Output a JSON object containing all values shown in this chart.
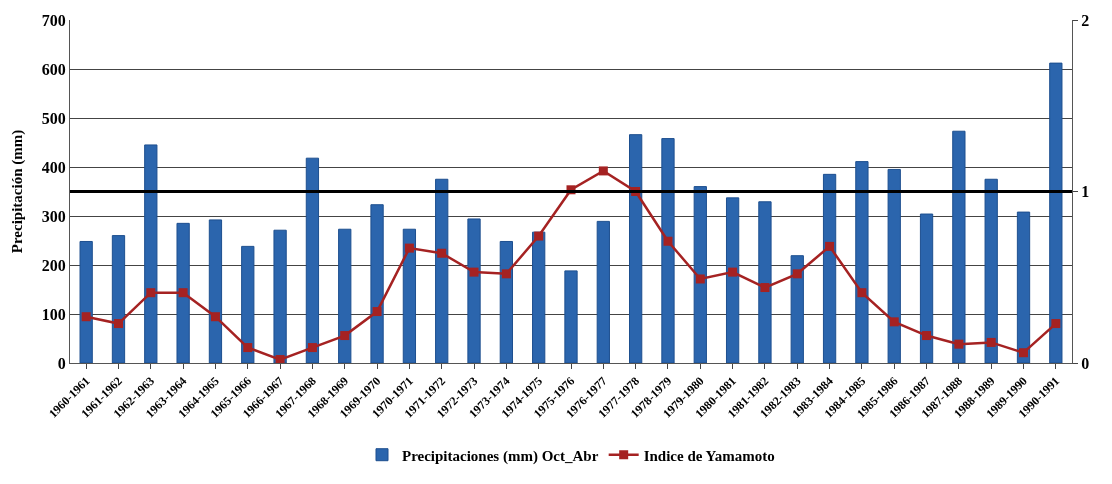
{
  "chart_data": {
    "type": "bar",
    "ylabel": "Precipitación (mm)",
    "categories": [
      "1960-1961",
      "1961-1962",
      "1962-1963",
      "1963-1964",
      "1964-1965",
      "1965-1966",
      "1966-1967",
      "1967-1968",
      "1968-1969",
      "1969-1970",
      "1970-1971",
      "1971-1972",
      "1972-1973",
      "1973-1974",
      "1974-1975",
      "1975-1976",
      "1976-1977",
      "1977-1978",
      "1978-1979",
      "1979-1980",
      "1980-1981",
      "1981-1982",
      "1982-1983",
      "1983-1984",
      "1984-1985",
      "1985-1986",
      "1986-1987",
      "1987-1988",
      "1988-1989",
      "1989-1990",
      "1990-1991"
    ],
    "series": [
      {
        "name": "Precipitaciones (mm) Oct_Abr",
        "color": "#2b65ad",
        "values": [
          248,
          260,
          445,
          285,
          292,
          238,
          271,
          418,
          273,
          323,
          273,
          375,
          294,
          248,
          267,
          188,
          289,
          466,
          458,
          360,
          337,
          329,
          219,
          385,
          411,
          395,
          304,
          473,
          375,
          308,
          612
        ]
      },
      {
        "name": "Indice de Yamamoto",
        "type": "line",
        "axis": "y2",
        "color": "#a52222",
        "marker": "square",
        "values": [
          0.27,
          0.23,
          0.41,
          0.41,
          0.27,
          0.09,
          0.02,
          0.09,
          0.16,
          0.3,
          0.67,
          0.64,
          0.53,
          0.52,
          0.74,
          1.01,
          1.12,
          1.0,
          0.71,
          0.49,
          0.53,
          0.44,
          0.52,
          0.68,
          0.41,
          0.24,
          0.16,
          0.11,
          0.12,
          0.06,
          0.23
        ]
      }
    ],
    "ylim": [
      0,
      700
    ],
    "yticks": [
      0,
      100,
      200,
      300,
      400,
      500,
      600,
      700
    ],
    "y2lim": [
      0,
      2
    ],
    "y2ticks": [
      0,
      1,
      2
    ],
    "ref_lines": [
      {
        "axis": "y2",
        "value": 1,
        "color": "#000000"
      }
    ],
    "grid": "y",
    "legend": "bottom"
  }
}
